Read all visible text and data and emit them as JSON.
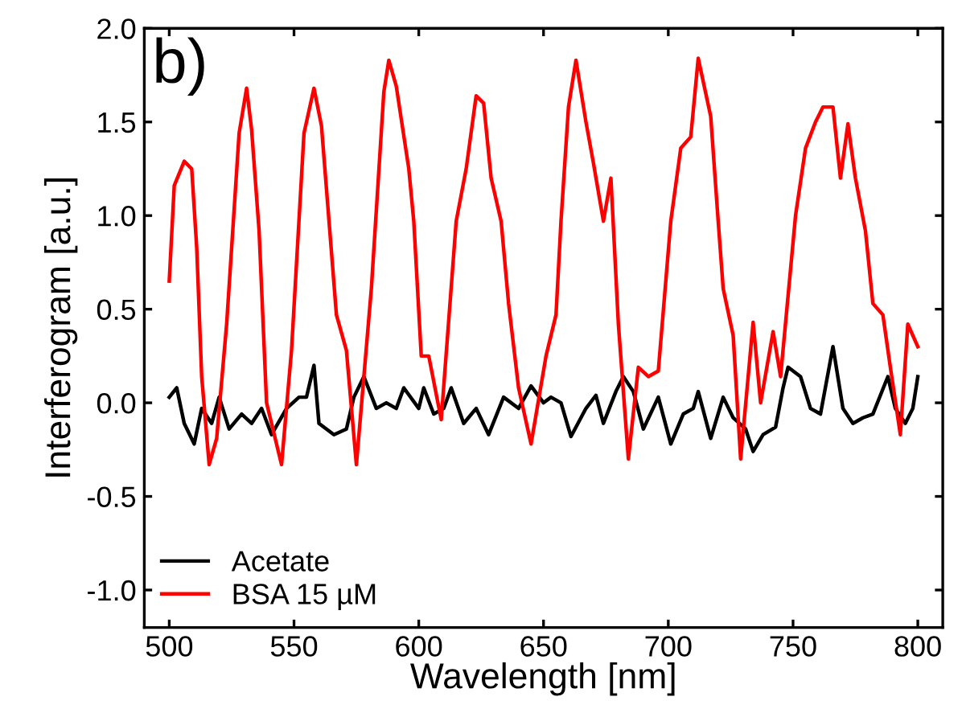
{
  "chart_data": {
    "type": "line",
    "xlabel": "Wavelength [nm]",
    "ylabel": "Interferogram [a.u.]",
    "annotations": [
      "b)"
    ],
    "xlim": [
      490,
      810
    ],
    "xticks": [
      500,
      550,
      600,
      650,
      700,
      750,
      800
    ],
    "ylim": [
      -1.2,
      2.0
    ],
    "yticks": [
      {
        "value": -1.0,
        "label": "-1.0"
      },
      {
        "value": -0.5,
        "label": "-0.5"
      },
      {
        "value": 0.0,
        "label": "0.0"
      },
      {
        "value": 0.5,
        "label": "0.5"
      },
      {
        "value": 1.0,
        "label": "1.0"
      },
      {
        "value": 1.5,
        "label": "1.5"
      },
      {
        "value": 2.0,
        "label": "2.0"
      }
    ],
    "grid": false,
    "legend": "bottom left",
    "marker": "none",
    "line_style": "solid",
    "series": [
      {
        "name": "Acetate",
        "color": "#000000",
        "x": [
          500,
          503,
          506,
          510,
          513,
          517,
          520,
          524,
          529,
          533,
          537,
          541,
          547,
          552,
          555,
          558,
          560,
          566,
          571,
          574,
          578,
          583,
          587,
          591,
          594,
          600,
          602,
          606,
          610,
          613,
          618,
          623,
          628,
          634,
          640,
          645,
          650,
          653,
          657,
          661,
          667,
          671,
          674,
          679,
          682,
          686,
          690,
          696,
          701,
          706,
          710,
          712,
          717,
          722,
          726,
          731,
          734,
          738,
          743,
          746,
          748,
          753,
          757,
          761,
          766,
          770,
          774,
          778,
          782,
          788,
          791,
          795,
          798,
          800
        ],
        "values": [
          0.03,
          0.08,
          -0.11,
          -0.22,
          -0.03,
          -0.11,
          0.03,
          -0.14,
          -0.06,
          -0.11,
          -0.03,
          -0.17,
          -0.03,
          0.03,
          0.03,
          0.2,
          -0.11,
          -0.17,
          -0.14,
          0.03,
          0.14,
          -0.03,
          0.0,
          -0.03,
          0.08,
          -0.03,
          0.08,
          -0.06,
          -0.03,
          0.08,
          -0.11,
          -0.03,
          -0.17,
          0.03,
          -0.03,
          0.09,
          0.0,
          0.03,
          0.0,
          -0.18,
          -0.03,
          0.04,
          -0.11,
          0.06,
          0.14,
          0.06,
          -0.14,
          0.03,
          -0.22,
          -0.06,
          -0.03,
          0.06,
          -0.19,
          0.03,
          -0.08,
          -0.14,
          -0.26,
          -0.17,
          -0.13,
          0.08,
          0.19,
          0.14,
          -0.03,
          -0.06,
          0.3,
          -0.03,
          -0.11,
          -0.08,
          -0.06,
          0.14,
          -0.03,
          -0.11,
          -0.03,
          0.14
        ]
      },
      {
        "name": "BSA 15 µM",
        "color": "#ff0000",
        "x": [
          500,
          502,
          506,
          509,
          511,
          513,
          516,
          519,
          523,
          528,
          531,
          533,
          536,
          539,
          545,
          549,
          554,
          558,
          561,
          567,
          571,
          575,
          581,
          586,
          588,
          591,
          596,
          598,
          601,
          604,
          609,
          615,
          619,
          623,
          626,
          629,
          633,
          636,
          640,
          645,
          651,
          655,
          657,
          660,
          663,
          667,
          670,
          674,
          677,
          680,
          684,
          688,
          692,
          696,
          701,
          705,
          709,
          712,
          717,
          720,
          722,
          726,
          729,
          734,
          737,
          742,
          745,
          751,
          755,
          759,
          762,
          766,
          769,
          772,
          775,
          779,
          782,
          786,
          789,
          793,
          796,
          798,
          800
        ],
        "values": [
          0.65,
          1.16,
          1.29,
          1.25,
          0.83,
          0.14,
          -0.33,
          -0.19,
          0.42,
          1.44,
          1.68,
          1.46,
          0.92,
          0.0,
          -0.33,
          0.28,
          1.44,
          1.68,
          1.48,
          0.47,
          0.28,
          -0.33,
          0.61,
          1.66,
          1.83,
          1.69,
          1.25,
          0.97,
          0.25,
          0.25,
          -0.09,
          0.97,
          1.25,
          1.64,
          1.6,
          1.2,
          0.97,
          0.53,
          0.08,
          -0.22,
          0.25,
          0.47,
          0.97,
          1.58,
          1.83,
          1.5,
          1.28,
          0.97,
          1.2,
          0.42,
          -0.3,
          0.19,
          0.14,
          0.17,
          0.97,
          1.36,
          1.42,
          1.84,
          1.53,
          0.97,
          0.61,
          0.36,
          -0.3,
          0.43,
          0.0,
          0.38,
          0.14,
          1.0,
          1.36,
          1.5,
          1.58,
          1.58,
          1.2,
          1.49,
          1.2,
          0.92,
          0.53,
          0.47,
          0.19,
          -0.17,
          0.42,
          0.36,
          0.3
        ]
      }
    ]
  }
}
